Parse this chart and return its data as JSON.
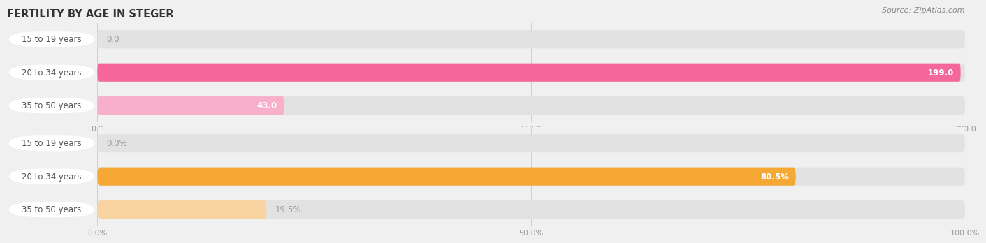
{
  "title": "FERTILITY BY AGE IN STEGER",
  "source": "Source: ZipAtlas.com",
  "top_chart": {
    "categories": [
      "15 to 19 years",
      "20 to 34 years",
      "35 to 50 years"
    ],
    "values": [
      0.0,
      199.0,
      43.0
    ],
    "max_val": 200.0,
    "tick_vals": [
      0.0,
      100.0,
      200.0
    ],
    "tick_labels": [
      "0.0",
      "100.0",
      "200.0"
    ],
    "bar_colors": [
      "#F7AFCA",
      "#F4679A",
      "#F7AFCA"
    ],
    "label_0_color": "#888888",
    "label_inside_color": "#ffffff"
  },
  "bottom_chart": {
    "categories": [
      "15 to 19 years",
      "20 to 34 years",
      "35 to 50 years"
    ],
    "values": [
      0.0,
      80.5,
      19.5
    ],
    "max_val": 100.0,
    "tick_vals": [
      0.0,
      50.0,
      100.0
    ],
    "tick_labels": [
      "0.0%",
      "50.0%",
      "100.0%"
    ],
    "bar_colors": [
      "#F9D4A0",
      "#F5A833",
      "#F9D4A0"
    ],
    "label_0_color": "#888888",
    "label_inside_color": "#ffffff"
  },
  "fig_bg": "#f0f0f0",
  "bar_bg": "#e2e2e2",
  "bar_row_bg": "#ebebeb",
  "label_font_size": 8.5,
  "title_font_size": 10.5,
  "category_font_size": 8.5,
  "tick_font_size": 8.0,
  "source_font_size": 8.0
}
